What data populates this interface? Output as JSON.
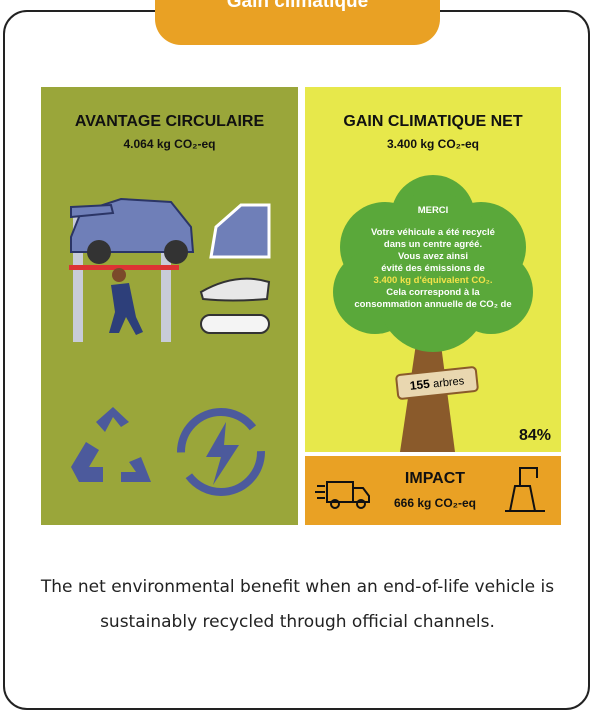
{
  "tab": "Gain climatique",
  "left": {
    "title": "AVANTAGE CIRCULAIRE",
    "value": "4.064 kg CO₂-eq"
  },
  "right": {
    "title": "GAIN CLIMATIQUE NET",
    "value": "3.400 kg CO₂-eq",
    "percent": "84%",
    "tree_lines": [
      "MERCI",
      "Votre véhicule a été recyclé",
      "dans un centre agréé.",
      "Vous avez ainsi",
      "évité des émissions de",
      "3.400 kg d'équivalent CO₂.",
      "Cela correspond à la",
      "consommation annuelle de CO₂ de"
    ],
    "sign_number": "155",
    "sign_unit": "arbres"
  },
  "impact": {
    "title": "IMPACT",
    "value": "666 kg CO₂-eq"
  },
  "caption": "The net environmental benefit when an end-of-life vehicle is sustainably recycled through official channels."
}
